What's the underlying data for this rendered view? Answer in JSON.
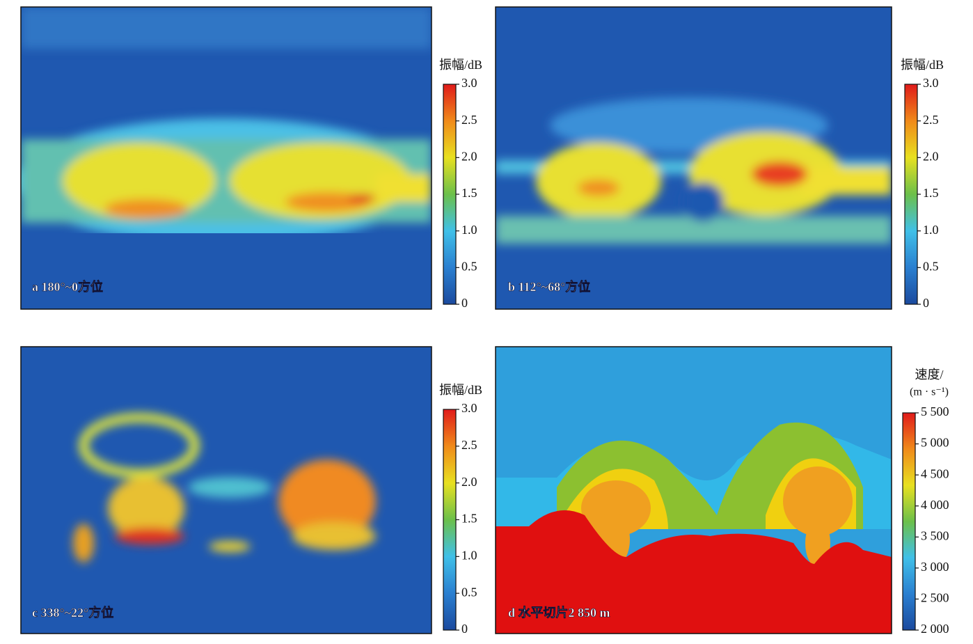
{
  "chart_data": [
    {
      "type": "heatmap",
      "label": "a 180°~0方位",
      "colorbar_title": "振幅/dB",
      "clim": [
        0,
        3
      ],
      "cticks": [
        0,
        0.5,
        {
          "value": 1,
          "label": "1.0"
        },
        1.5,
        {
          "value": 2,
          "label": "2.0"
        },
        2.5,
        {
          "value": 3,
          "label": "3.0"
        }
      ],
      "colors": [
        "#1b4a9e",
        "#2a7fd0",
        "#40c0e8",
        "#6cc04a",
        "#e8e020",
        "#f08a1a",
        "#e01a1a"
      ]
    },
    {
      "type": "heatmap",
      "label": "b 112°~68°方位",
      "colorbar_title": "振幅/dB",
      "clim": [
        0,
        3
      ],
      "cticks": [
        0,
        0.5,
        {
          "value": 1,
          "label": "1.0"
        },
        1.5,
        {
          "value": 2,
          "label": "2.0"
        },
        2.5,
        {
          "value": 3,
          "label": "3.0"
        }
      ],
      "colors": [
        "#1b4a9e",
        "#2a7fd0",
        "#40c0e8",
        "#6cc04a",
        "#e8e020",
        "#f08a1a",
        "#e01a1a"
      ]
    },
    {
      "type": "heatmap",
      "label": "c 338°~22°方位",
      "colorbar_title": "振幅/dB",
      "clim": [
        0,
        3
      ],
      "cticks": [
        0,
        0.5,
        {
          "value": 1,
          "label": "1.0"
        },
        1.5,
        {
          "value": 2,
          "label": "2.0"
        },
        2.5,
        {
          "value": 3,
          "label": "3.0"
        }
      ],
      "colors": [
        "#1b4a9e",
        "#2a7fd0",
        "#40c0e8",
        "#6cc04a",
        "#e8e020",
        "#f08a1a",
        "#e01a1a"
      ]
    },
    {
      "type": "heatmap",
      "label": "d 水平切片2 850 m",
      "colorbar_title": "速度/",
      "colorbar_unit": "(m · s⁻¹)",
      "clim": [
        2000,
        5500
      ],
      "cticks": [
        {
          "value": 2000,
          "label": "2 000"
        },
        {
          "value": 2500,
          "label": "2 500"
        },
        {
          "value": 3000,
          "label": "3 000"
        },
        {
          "value": 3500,
          "label": "3 500"
        },
        {
          "value": 4000,
          "label": "4 000"
        },
        {
          "value": 4500,
          "label": "4 500"
        },
        {
          "value": 5000,
          "label": "5 000"
        },
        {
          "value": 5500,
          "label": "5 500"
        }
      ],
      "colors": [
        "#1b4a9e",
        "#2a7fd0",
        "#40c0e8",
        "#6cc04a",
        "#e8e020",
        "#f08a1a",
        "#e01a1a"
      ]
    }
  ]
}
